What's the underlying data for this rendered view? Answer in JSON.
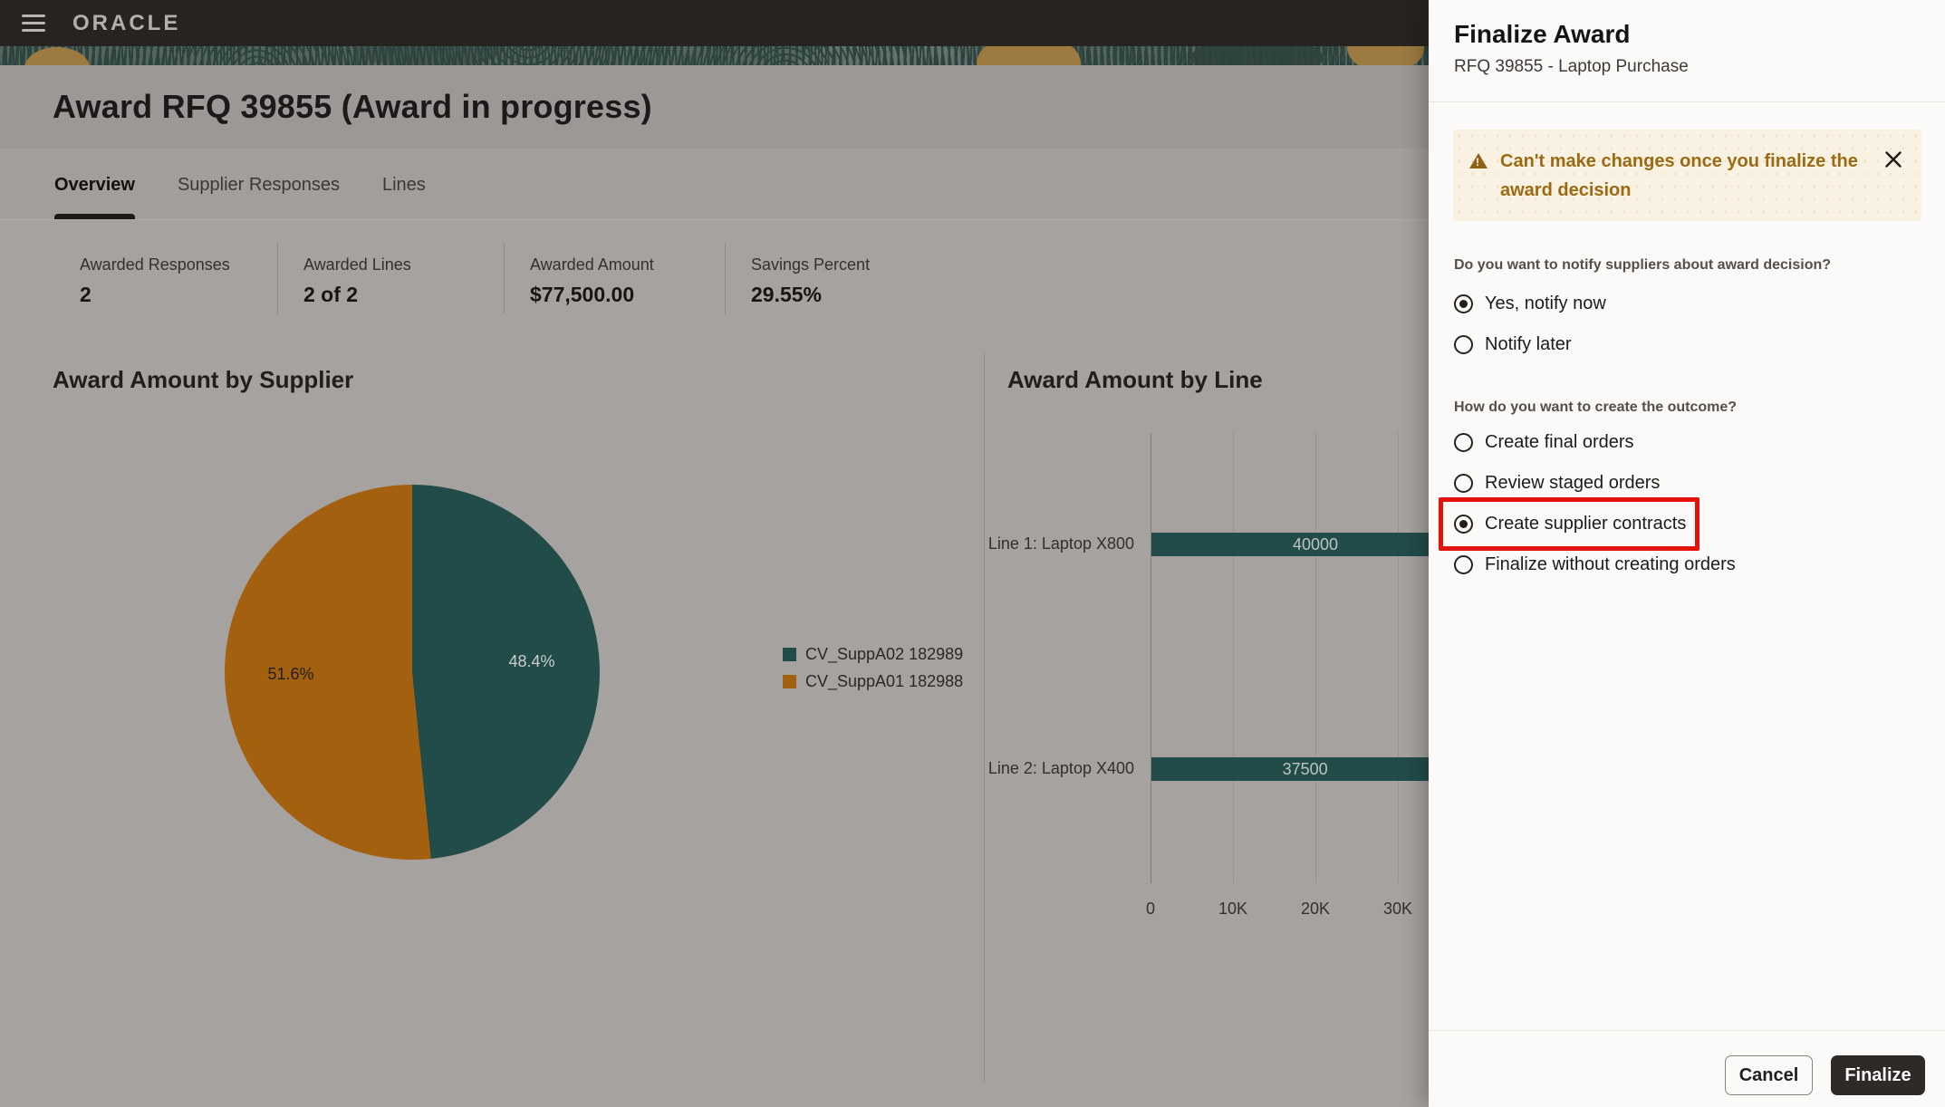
{
  "topbar": {
    "brand": "ORACLE"
  },
  "page": {
    "title": "Award RFQ 39855 (Award in progress)",
    "tabs": [
      {
        "label": "Overview",
        "active": true
      },
      {
        "label": "Supplier Responses",
        "active": false
      },
      {
        "label": "Lines",
        "active": false
      }
    ]
  },
  "stats": [
    {
      "label": "Awarded Responses",
      "value": "2"
    },
    {
      "label": "Awarded Lines",
      "value": "2 of 2"
    },
    {
      "label": "Awarded Amount",
      "value": "$77,500.00"
    },
    {
      "label": "Savings Percent",
      "value": "29.55%"
    }
  ],
  "chart_data": [
    {
      "type": "pie",
      "title": "Award Amount by Supplier",
      "start_angle": "12 o'clock, clockwise",
      "slices": [
        {
          "label": "CV_SuppA02 182989",
          "pct": 48.4,
          "value_label": "48.4%",
          "color": "#214c4a"
        },
        {
          "label": "CV_SuppA01 182988",
          "pct": 51.6,
          "value_label": "51.6%",
          "color": "#a3600f"
        }
      ],
      "legend_position": "right"
    },
    {
      "type": "bar",
      "title": "Award Amount by Line",
      "orientation": "horizontal",
      "categories": [
        "Line 1: Laptop X800",
        "Line 2: Laptop X400"
      ],
      "values": [
        40000,
        37500
      ],
      "bar_color": "#214c4a",
      "x_ticks": [
        0,
        10000,
        20000,
        30000
      ],
      "x_tick_labels": [
        "0",
        "10K",
        "20K",
        "30K"
      ],
      "xlim": [
        0,
        40000
      ],
      "note": "bars extend under the side panel (clipped at right edge)"
    }
  ],
  "panel": {
    "title": "Finalize Award",
    "subtitle": "RFQ 39855 - Laptop Purchase",
    "warning": {
      "text": "Can't make changes once you finalize the award decision"
    },
    "questions": [
      {
        "label": "Do you want to notify suppliers about award decision?",
        "options": [
          {
            "label": "Yes, notify now",
            "selected": true
          },
          {
            "label": "Notify later",
            "selected": false
          }
        ]
      },
      {
        "label": "How do you want to create the outcome?",
        "options": [
          {
            "label": "Create final orders",
            "selected": false
          },
          {
            "label": "Review staged orders",
            "selected": false
          },
          {
            "label": "Create supplier contracts",
            "selected": true,
            "highlighted": true
          },
          {
            "label": "Finalize without creating orders",
            "selected": false
          }
        ]
      }
    ],
    "footer": {
      "cancel_label": "Cancel",
      "finalize_label": "Finalize"
    },
    "highlight_color": "#e3120b"
  }
}
